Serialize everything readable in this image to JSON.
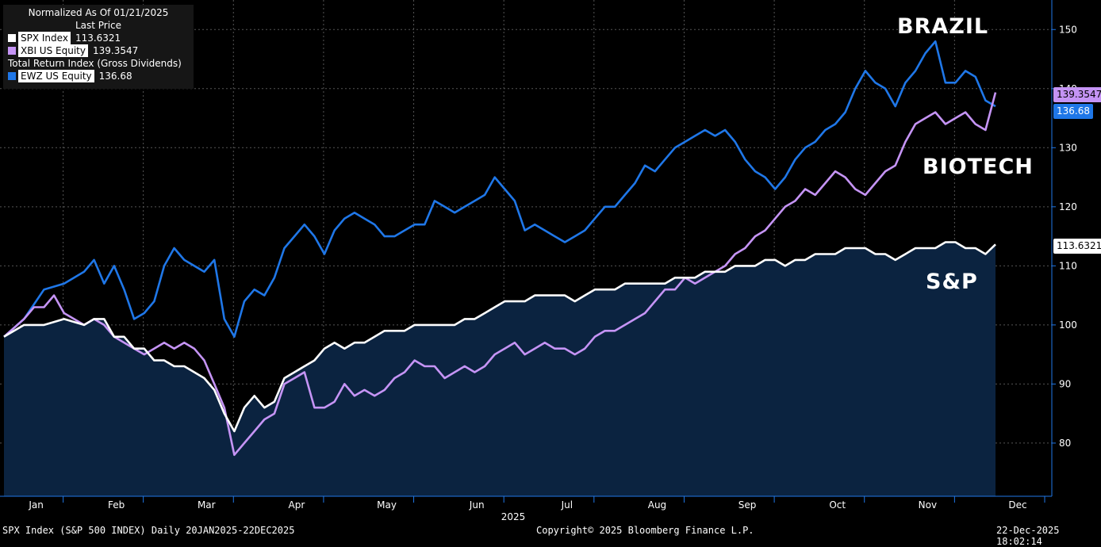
{
  "legend": {
    "title": "Normalized As Of 01/21/2025",
    "subtitle": "Last Price",
    "spx": {
      "name": "SPX Index",
      "value": "113.6321"
    },
    "xbi": {
      "name": "XBI US Equity",
      "value": "139.3547"
    },
    "trheader": "Total Return Index (Gross Dividends)",
    "ewz": {
      "name": "EWZ US Equity",
      "value": "136.68"
    }
  },
  "labels": {
    "brazil": "BRAZIL",
    "biotech": "BIOTECH",
    "sp": "S&P"
  },
  "footer": {
    "left": "SPX Index (S&P 500 INDEX) Daily 20JAN2025-22DEC2025",
    "center": "Copyright© 2025 Bloomberg Finance L.P.",
    "right": "22-Dec-2025 18:02:14"
  },
  "colors": {
    "spx": "#ffffff",
    "xbi": "#c594f5",
    "ewz": "#1f77e8",
    "area": "#0b2340",
    "axis": "#1f77e8"
  },
  "chart_data": {
    "type": "line",
    "title": "Normalized As Of 01/21/2025",
    "ylim": [
      71,
      155
    ],
    "yticks": [
      80,
      90,
      100,
      110,
      120,
      130,
      140,
      150
    ],
    "xlim": [
      0,
      100
    ],
    "xmonths": [
      {
        "label": "Jan",
        "x": 1
      },
      {
        "label": "Feb",
        "x": 9
      },
      {
        "label": "Mar",
        "x": 18
      },
      {
        "label": "Apr",
        "x": 27
      },
      {
        "label": "May",
        "x": 36
      },
      {
        "label": "Jun",
        "x": 45
      },
      {
        "label": "Jul",
        "x": 54
      },
      {
        "label": "Aug",
        "x": 63
      },
      {
        "label": "Sep",
        "x": 72
      },
      {
        "label": "Oct",
        "x": 81
      },
      {
        "label": "Nov",
        "x": 90
      },
      {
        "label": "Dec",
        "x": 99
      }
    ],
    "year_label": "2025",
    "series": [
      {
        "name": "EWZ US Equity",
        "key": "ewz",
        "last": 136.68,
        "points": [
          [
            0,
            98
          ],
          [
            2,
            101
          ],
          [
            4,
            106
          ],
          [
            6,
            107
          ],
          [
            8,
            109
          ],
          [
            9,
            111
          ],
          [
            10,
            107
          ],
          [
            11,
            110
          ],
          [
            12,
            106
          ],
          [
            13,
            101
          ],
          [
            14,
            102
          ],
          [
            15,
            104
          ],
          [
            16,
            110
          ],
          [
            17,
            113
          ],
          [
            18,
            111
          ],
          [
            20,
            109
          ],
          [
            21,
            111
          ],
          [
            22,
            101
          ],
          [
            23,
            98
          ],
          [
            24,
            104
          ],
          [
            25,
            106
          ],
          [
            26,
            105
          ],
          [
            27,
            108
          ],
          [
            28,
            113
          ],
          [
            29,
            115
          ],
          [
            30,
            117
          ],
          [
            31,
            115
          ],
          [
            32,
            112
          ],
          [
            33,
            116
          ],
          [
            34,
            118
          ],
          [
            35,
            119
          ],
          [
            36,
            118
          ],
          [
            37,
            117
          ],
          [
            38,
            115
          ],
          [
            39,
            115
          ],
          [
            40,
            116
          ],
          [
            41,
            117
          ],
          [
            42,
            117
          ],
          [
            43,
            121
          ],
          [
            44,
            120
          ],
          [
            45,
            119
          ],
          [
            46,
            120
          ],
          [
            47,
            121
          ],
          [
            48,
            122
          ],
          [
            49,
            125
          ],
          [
            50,
            123
          ],
          [
            51,
            121
          ],
          [
            52,
            116
          ],
          [
            53,
            117
          ],
          [
            54,
            116
          ],
          [
            55,
            115
          ],
          [
            56,
            114
          ],
          [
            57,
            115
          ],
          [
            58,
            116
          ],
          [
            59,
            118
          ],
          [
            60,
            120
          ],
          [
            61,
            120
          ],
          [
            62,
            122
          ],
          [
            63,
            124
          ],
          [
            64,
            127
          ],
          [
            65,
            126
          ],
          [
            66,
            128
          ],
          [
            67,
            130
          ],
          [
            68,
            131
          ],
          [
            69,
            132
          ],
          [
            70,
            133
          ],
          [
            71,
            132
          ],
          [
            72,
            133
          ],
          [
            73,
            131
          ],
          [
            74,
            128
          ],
          [
            75,
            126
          ],
          [
            76,
            125
          ],
          [
            77,
            123
          ],
          [
            78,
            125
          ],
          [
            79,
            128
          ],
          [
            80,
            130
          ],
          [
            81,
            131
          ],
          [
            82,
            133
          ],
          [
            83,
            134
          ],
          [
            84,
            136
          ],
          [
            85,
            140
          ],
          [
            86,
            143
          ],
          [
            87,
            141
          ],
          [
            88,
            140
          ],
          [
            89,
            137
          ],
          [
            90,
            141
          ],
          [
            91,
            143
          ],
          [
            92,
            146
          ],
          [
            93,
            148
          ],
          [
            94,
            141
          ],
          [
            95,
            141
          ],
          [
            96,
            143
          ],
          [
            97,
            142
          ],
          [
            98,
            138
          ],
          [
            99,
            137
          ]
        ]
      },
      {
        "name": "XBI US Equity",
        "key": "xbi",
        "last": 139.3547,
        "points": [
          [
            0,
            98
          ],
          [
            2,
            101
          ],
          [
            3,
            103
          ],
          [
            4,
            103
          ],
          [
            5,
            105
          ],
          [
            6,
            102
          ],
          [
            7,
            101
          ],
          [
            8,
            100
          ],
          [
            9,
            101
          ],
          [
            10,
            100
          ],
          [
            11,
            98
          ],
          [
            12,
            97
          ],
          [
            13,
            96
          ],
          [
            14,
            95
          ],
          [
            15,
            96
          ],
          [
            16,
            97
          ],
          [
            17,
            96
          ],
          [
            18,
            97
          ],
          [
            19,
            96
          ],
          [
            20,
            94
          ],
          [
            21,
            90
          ],
          [
            22,
            86
          ],
          [
            23,
            78
          ],
          [
            24,
            80
          ],
          [
            25,
            82
          ],
          [
            26,
            84
          ],
          [
            27,
            85
          ],
          [
            28,
            90
          ],
          [
            29,
            91
          ],
          [
            30,
            92
          ],
          [
            31,
            86
          ],
          [
            32,
            86
          ],
          [
            33,
            87
          ],
          [
            34,
            90
          ],
          [
            35,
            88
          ],
          [
            36,
            89
          ],
          [
            37,
            88
          ],
          [
            38,
            89
          ],
          [
            39,
            91
          ],
          [
            40,
            92
          ],
          [
            41,
            94
          ],
          [
            42,
            93
          ],
          [
            43,
            93
          ],
          [
            44,
            91
          ],
          [
            45,
            92
          ],
          [
            46,
            93
          ],
          [
            47,
            92
          ],
          [
            48,
            93
          ],
          [
            49,
            95
          ],
          [
            50,
            96
          ],
          [
            51,
            97
          ],
          [
            52,
            95
          ],
          [
            53,
            96
          ],
          [
            54,
            97
          ],
          [
            55,
            96
          ],
          [
            56,
            96
          ],
          [
            57,
            95
          ],
          [
            58,
            96
          ],
          [
            59,
            98
          ],
          [
            60,
            99
          ],
          [
            61,
            99
          ],
          [
            62,
            100
          ],
          [
            63,
            101
          ],
          [
            64,
            102
          ],
          [
            65,
            104
          ],
          [
            66,
            106
          ],
          [
            67,
            106
          ],
          [
            68,
            108
          ],
          [
            69,
            107
          ],
          [
            70,
            108
          ],
          [
            71,
            109
          ],
          [
            72,
            110
          ],
          [
            73,
            112
          ],
          [
            74,
            113
          ],
          [
            75,
            115
          ],
          [
            76,
            116
          ],
          [
            77,
            118
          ],
          [
            78,
            120
          ],
          [
            79,
            121
          ],
          [
            80,
            123
          ],
          [
            81,
            122
          ],
          [
            82,
            124
          ],
          [
            83,
            126
          ],
          [
            84,
            125
          ],
          [
            85,
            123
          ],
          [
            86,
            122
          ],
          [
            87,
            124
          ],
          [
            88,
            126
          ],
          [
            89,
            127
          ],
          [
            90,
            131
          ],
          [
            91,
            134
          ],
          [
            92,
            135
          ],
          [
            93,
            136
          ],
          [
            94,
            134
          ],
          [
            95,
            135
          ],
          [
            96,
            136
          ],
          [
            97,
            134
          ],
          [
            98,
            133
          ],
          [
            99,
            139.35
          ]
        ]
      },
      {
        "name": "SPX Index",
        "key": "spx",
        "last": 113.6321,
        "points": [
          [
            0,
            98
          ],
          [
            2,
            100
          ],
          [
            4,
            100
          ],
          [
            6,
            101
          ],
          [
            8,
            100
          ],
          [
            9,
            101
          ],
          [
            10,
            101
          ],
          [
            11,
            98
          ],
          [
            12,
            98
          ],
          [
            13,
            96
          ],
          [
            14,
            96
          ],
          [
            15,
            94
          ],
          [
            16,
            94
          ],
          [
            17,
            93
          ],
          [
            18,
            93
          ],
          [
            19,
            92
          ],
          [
            20,
            91
          ],
          [
            21,
            89
          ],
          [
            22,
            85
          ],
          [
            23,
            82
          ],
          [
            24,
            86
          ],
          [
            25,
            88
          ],
          [
            26,
            86
          ],
          [
            27,
            87
          ],
          [
            28,
            91
          ],
          [
            29,
            92
          ],
          [
            30,
            93
          ],
          [
            31,
            94
          ],
          [
            32,
            96
          ],
          [
            33,
            97
          ],
          [
            34,
            96
          ],
          [
            35,
            97
          ],
          [
            36,
            97
          ],
          [
            37,
            98
          ],
          [
            38,
            99
          ],
          [
            39,
            99
          ],
          [
            40,
            99
          ],
          [
            41,
            100
          ],
          [
            42,
            100
          ],
          [
            43,
            100
          ],
          [
            44,
            100
          ],
          [
            45,
            100
          ],
          [
            46,
            101
          ],
          [
            47,
            101
          ],
          [
            48,
            102
          ],
          [
            49,
            103
          ],
          [
            50,
            104
          ],
          [
            51,
            104
          ],
          [
            52,
            104
          ],
          [
            53,
            105
          ],
          [
            54,
            105
          ],
          [
            55,
            105
          ],
          [
            56,
            105
          ],
          [
            57,
            104
          ],
          [
            58,
            105
          ],
          [
            59,
            106
          ],
          [
            60,
            106
          ],
          [
            61,
            106
          ],
          [
            62,
            107
          ],
          [
            63,
            107
          ],
          [
            64,
            107
          ],
          [
            65,
            107
          ],
          [
            66,
            107
          ],
          [
            67,
            108
          ],
          [
            68,
            108
          ],
          [
            69,
            108
          ],
          [
            70,
            109
          ],
          [
            71,
            109
          ],
          [
            72,
            109
          ],
          [
            73,
            110
          ],
          [
            74,
            110
          ],
          [
            75,
            110
          ],
          [
            76,
            111
          ],
          [
            77,
            111
          ],
          [
            78,
            110
          ],
          [
            79,
            111
          ],
          [
            80,
            111
          ],
          [
            81,
            112
          ],
          [
            82,
            112
          ],
          [
            83,
            112
          ],
          [
            84,
            113
          ],
          [
            85,
            113
          ],
          [
            86,
            113
          ],
          [
            87,
            112
          ],
          [
            88,
            112
          ],
          [
            89,
            111
          ],
          [
            90,
            112
          ],
          [
            91,
            113
          ],
          [
            92,
            113
          ],
          [
            93,
            113
          ],
          [
            94,
            114
          ],
          [
            95,
            114
          ],
          [
            96,
            113
          ],
          [
            97,
            113
          ],
          [
            98,
            112
          ],
          [
            99,
            113.63
          ]
        ]
      }
    ]
  }
}
